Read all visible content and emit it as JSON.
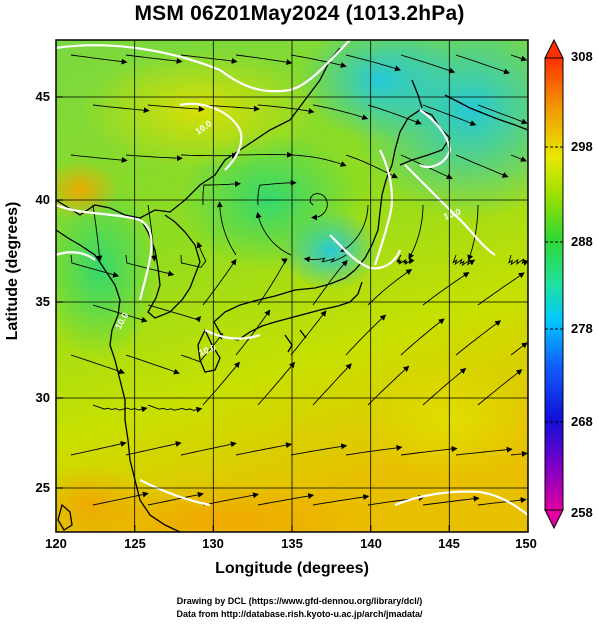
{
  "title": "MSM 06Z01May2024 (1013.2hPa)",
  "axes": {
    "xlabel": "Longitude (degrees)",
    "ylabel": "Latitude  (degrees)",
    "xticks": [
      "120",
      "125",
      "130",
      "135",
      "140",
      "145",
      "150"
    ],
    "yticks": [
      "45",
      "40",
      "35",
      "30",
      "25"
    ]
  },
  "colorbar": {
    "ticks": [
      "308",
      "298",
      "288",
      "278",
      "268",
      "258"
    ],
    "colors": [
      "#e0007a",
      "#7a00c8",
      "#1010d8",
      "#1060ff",
      "#00c8ff",
      "#20e0a0",
      "#30d830",
      "#90e000",
      "#e0e000",
      "#f0a000",
      "#ff4000"
    ]
  },
  "contour_labels": [
    "10.0",
    "10.0",
    "10.0",
    "10.0"
  ],
  "credits": {
    "line1": "Drawing by DCL (https://www.gfd-dennou.org/library/dcl/)",
    "line2": "Data from http://database.rish.kyoto-u.ac.jp/arch/jmadata/"
  },
  "chart_data": {
    "type": "heatmap",
    "title": "MSM 06Z01May2024 (1013.2hPa)",
    "xlabel": "Longitude (degrees)",
    "ylabel": "Latitude  (degrees)",
    "xlim": [
      120,
      150
    ],
    "ylim": [
      22.4,
      47.6
    ],
    "color_range": [
      258,
      308
    ],
    "grid": true
  }
}
